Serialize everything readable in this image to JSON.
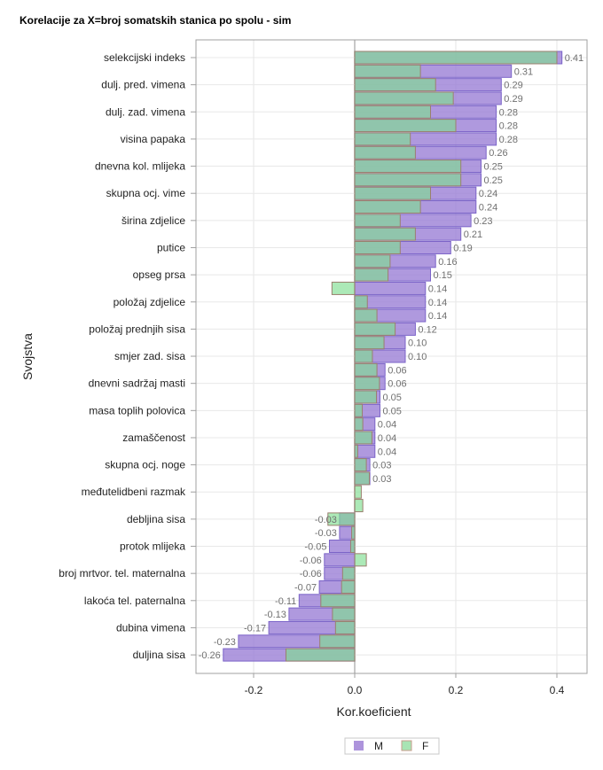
{
  "title": "Korelacije za X=broj somatskih stanica po spolu - sim",
  "chart_data": {
    "type": "bar",
    "orientation": "horizontal",
    "title": "Korelacije za X=broj somatskih stanica po spolu - sim",
    "xlabel": "Kor.koeficient",
    "ylabel": "Svojstva",
    "xlim": [
      -0.32,
      0.46
    ],
    "xticks": [
      -0.2,
      0.0,
      0.2,
      0.4
    ],
    "xtick_labels": [
      "-0.2",
      "0.0",
      "0.2",
      "0.4"
    ],
    "grid": true,
    "legend_position": "bottom-center",
    "category_labels": [
      "selekcijski indeks",
      "dulj. pred. vimena",
      "dulj. zad. vimena",
      "visina papaka",
      "dnevna kol. mlijeka",
      "skupna ocj. vime",
      "širina zdjelice",
      "putice",
      "opseg prsa",
      "položaj zdjelice",
      "položaj prednjih sisa",
      "smjer zad. sisa",
      "dnevni sadržaj masti",
      "masa toplih polovica",
      "zamaščenost",
      "skupna ocj. noge",
      "međutelidbeni razmak",
      "debljina sisa",
      "protok mlijeka",
      "broj mrtvor. tel. maternalna",
      "lakoća tel. paternalna",
      "dubina vimena",
      "duljina sisa"
    ],
    "label_every": 2,
    "series": [
      {
        "name": "M",
        "color": "#9b7fd6",
        "values": [
          0.41,
          0.31,
          0.29,
          0.29,
          0.28,
          0.28,
          0.28,
          0.26,
          0.25,
          0.25,
          0.24,
          0.24,
          0.23,
          0.21,
          0.19,
          0.16,
          0.15,
          0.14,
          0.14,
          0.14,
          0.12,
          0.1,
          0.1,
          0.06,
          0.06,
          0.05,
          0.05,
          0.04,
          0.04,
          0.04,
          0.03,
          0.03,
          null,
          null,
          -0.03,
          -0.03,
          -0.05,
          -0.06,
          -0.06,
          -0.07,
          -0.11,
          -0.13,
          -0.17,
          -0.23,
          -0.26
        ],
        "data_labels": [
          "0.41",
          "0.31",
          "0.29",
          "0.29",
          "0.28",
          "0.28",
          "0.28",
          "0.26",
          "0.25",
          "0.25",
          "0.24",
          "0.24",
          "0.23",
          "0.21",
          "0.19",
          "0.16",
          "0.15",
          "0.14",
          "0.14",
          "0.14",
          "0.12",
          "0.10",
          "0.10",
          "0.06",
          "0.06",
          "0.05",
          "0.05",
          "0.04",
          "0.04",
          "0.04",
          "0.03",
          "0.03",
          "",
          "",
          "-0.03",
          "-0.03",
          "-0.05",
          "-0.06",
          "-0.06",
          "-0.07",
          "-0.11",
          "-0.13",
          "-0.17",
          "-0.23",
          "-0.26"
        ]
      },
      {
        "name": "F",
        "color": "#8fdc9f",
        "values": [
          0.4,
          0.13,
          0.16,
          0.195,
          0.15,
          0.2,
          0.11,
          0.12,
          0.21,
          0.21,
          0.15,
          0.13,
          0.09,
          0.12,
          0.09,
          0.07,
          0.066,
          -0.045,
          0.025,
          0.044,
          0.08,
          0.058,
          0.035,
          0.044,
          0.049,
          0.043,
          0.015,
          0.016,
          0.034,
          0.006,
          0.023,
          0.029,
          0.013,
          0.016,
          -0.053,
          -0.006,
          -0.008,
          0.023,
          -0.024,
          -0.026,
          -0.067,
          -0.044,
          -0.038,
          -0.069,
          -0.136
        ]
      }
    ]
  },
  "legend": {
    "items": [
      {
        "label": "M",
        "color": "#ad94dc"
      },
      {
        "label": "F",
        "color": "#a8e4b4"
      }
    ]
  }
}
